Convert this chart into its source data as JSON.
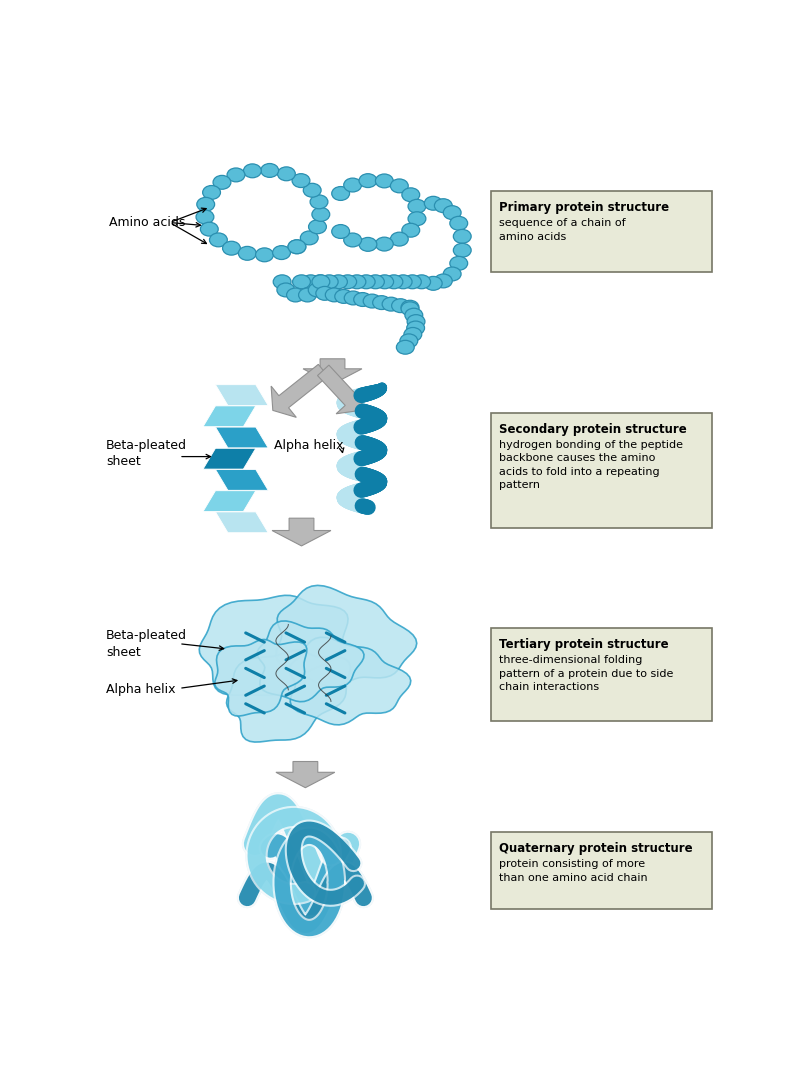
{
  "bg_color": "#ffffff",
  "box_bg": "#e8ead8",
  "box_edge": "#777766",
  "teal_dark": "#0e7fa8",
  "teal_mid": "#2ba0c8",
  "teal_light": "#7dd4e8",
  "teal_pale": "#b8e4f0",
  "teal_bead": "#58bdd8",
  "bead_edge": "#2b8fb0",
  "gray_arrow": "#b8b8b8",
  "gray_arrow_edge": "#909090",
  "boxes": [
    {
      "title": "Primary protein structure",
      "body": "sequence of a chain of\namino acids"
    },
    {
      "title": "Secondary protein structure",
      "body": "hydrogen bonding of the peptide\nbackbone causes the amino\nacids to fold into a repeating\npattern"
    },
    {
      "title": "Tertiary protein structure",
      "body": "three-dimensional folding\npattern of a protein due to side\nchain interactions"
    },
    {
      "title": "Quaternary protein structure",
      "body": "protein consisting of more\nthan one amino acid chain"
    }
  ]
}
